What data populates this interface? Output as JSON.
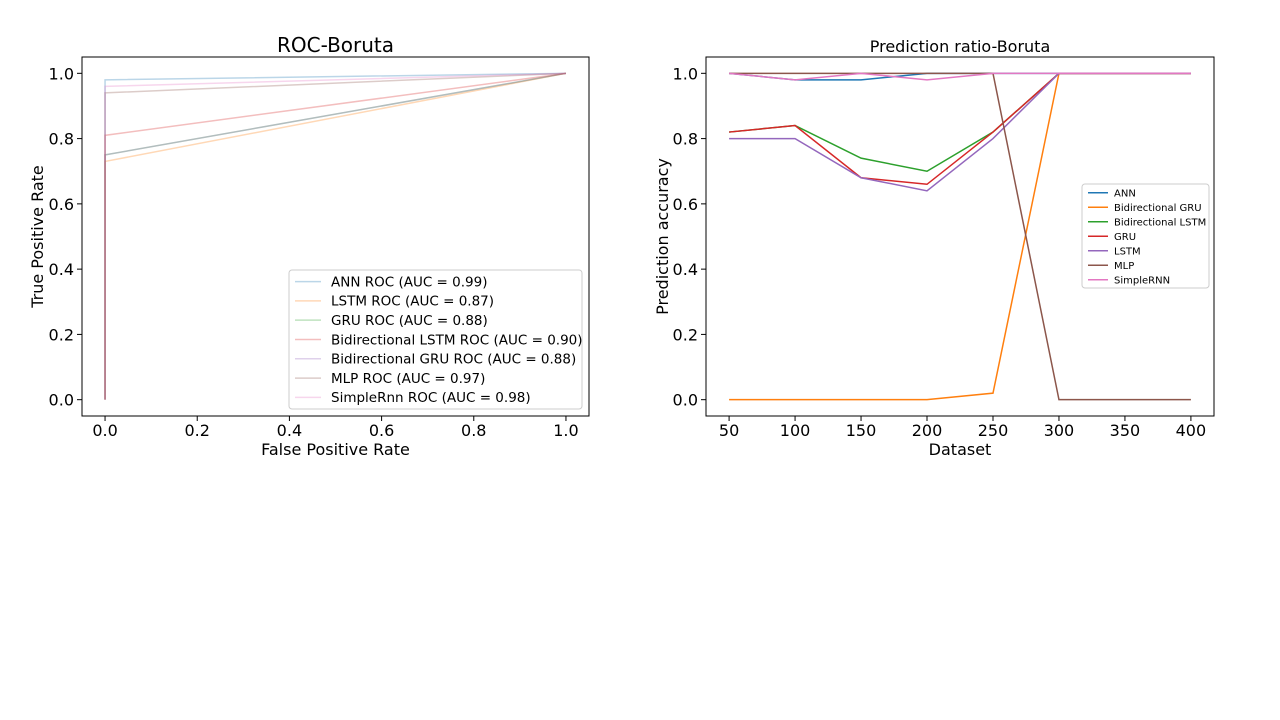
{
  "chart_data": [
    {
      "type": "line",
      "title": "ROC-Boruta",
      "xlabel": "False Positive Rate",
      "ylabel": "True Positive Rate",
      "xlim": [
        -0.05,
        1.05
      ],
      "ylim": [
        -0.05,
        1.05
      ],
      "xticks": [
        0.0,
        0.2,
        0.4,
        0.6,
        0.8,
        1.0
      ],
      "xtick_labels": [
        "0.0",
        "0.2",
        "0.4",
        "0.6",
        "0.8",
        "1.0"
      ],
      "yticks": [
        0.0,
        0.2,
        0.4,
        0.6,
        0.8,
        1.0
      ],
      "ytick_labels": [
        "0.0",
        "0.2",
        "0.4",
        "0.6",
        "0.8",
        "1.0"
      ],
      "grid": false,
      "legend": "lower right",
      "series": [
        {
          "name": "ANN ROC (AUC = 0.99)",
          "color": "#1f77b4",
          "opacity": 0.3,
          "x": [
            0,
            0,
            1
          ],
          "y": [
            0,
            0.98,
            1
          ]
        },
        {
          "name": "LSTM ROC (AUC = 0.87)",
          "color": "#ff7f0e",
          "opacity": 0.3,
          "x": [
            0,
            0,
            1
          ],
          "y": [
            0,
            0.73,
            1
          ]
        },
        {
          "name": "GRU ROC (AUC = 0.88)",
          "color": "#2ca02c",
          "opacity": 0.3,
          "x": [
            0,
            0,
            1
          ],
          "y": [
            0,
            0.75,
            1
          ]
        },
        {
          "name": "Bidirectional LSTM ROC (AUC = 0.90)",
          "color": "#d62728",
          "opacity": 0.3,
          "x": [
            0,
            0,
            1
          ],
          "y": [
            0,
            0.81,
            1
          ]
        },
        {
          "name": "Bidirectional GRU ROC (AUC = 0.88)",
          "color": "#9467bd",
          "opacity": 0.3,
          "x": [
            0,
            0,
            1
          ],
          "y": [
            0,
            0.75,
            1
          ]
        },
        {
          "name": "MLP ROC (AUC = 0.97)",
          "color": "#8c564b",
          "opacity": 0.3,
          "x": [
            0,
            0,
            1
          ],
          "y": [
            0,
            0.94,
            1
          ]
        },
        {
          "name": "SimpleRnn ROC (AUC = 0.98)",
          "color": "#e377c2",
          "opacity": 0.3,
          "x": [
            0,
            0,
            1
          ],
          "y": [
            0,
            0.96,
            1
          ]
        }
      ]
    },
    {
      "type": "line",
      "title": "Prediction ratio-Boruta",
      "xlabel": "Dataset",
      "ylabel": "Prediction accuracy",
      "xlim": [
        32.5,
        417.5
      ],
      "ylim": [
        -0.05,
        1.05
      ],
      "xticks": [
        50,
        100,
        150,
        200,
        250,
        300,
        350,
        400
      ],
      "xtick_labels": [
        "50",
        "100",
        "150",
        "200",
        "250",
        "300",
        "350",
        "400"
      ],
      "yticks": [
        0.0,
        0.2,
        0.4,
        0.6,
        0.8,
        1.0
      ],
      "ytick_labels": [
        "0.0",
        "0.2",
        "0.4",
        "0.6",
        "0.8",
        "1.0"
      ],
      "grid": false,
      "legend": "center right",
      "x": [
        50,
        100,
        150,
        200,
        250,
        300,
        350,
        400
      ],
      "series": [
        {
          "name": "ANN",
          "color": "#1f77b4",
          "values": [
            1.0,
            0.98,
            0.98,
            1.0,
            1.0,
            1.0,
            1.0,
            1.0
          ]
        },
        {
          "name": "Bidirectional GRU",
          "color": "#ff7f0e",
          "values": [
            0.0,
            0.0,
            0.0,
            0.0,
            0.02,
            1.0,
            1.0,
            1.0
          ]
        },
        {
          "name": "Bidirectional LSTM",
          "color": "#2ca02c",
          "values": [
            0.82,
            0.84,
            0.74,
            0.7,
            0.82,
            1.0,
            1.0,
            1.0
          ]
        },
        {
          "name": "GRU",
          "color": "#d62728",
          "values": [
            0.82,
            0.84,
            0.68,
            0.66,
            0.82,
            1.0,
            1.0,
            1.0
          ]
        },
        {
          "name": "LSTM",
          "color": "#9467bd",
          "values": [
            0.8,
            0.8,
            0.68,
            0.64,
            0.8,
            1.0,
            1.0,
            1.0
          ]
        },
        {
          "name": "MLP",
          "color": "#8c564b",
          "values": [
            1.0,
            1.0,
            1.0,
            1.0,
            1.0,
            0.0,
            0.0,
            0.0
          ]
        },
        {
          "name": "SimpleRNN",
          "color": "#e377c2",
          "values": [
            1.0,
            0.98,
            1.0,
            0.98,
            1.0,
            1.0,
            1.0,
            1.0
          ]
        }
      ]
    }
  ]
}
